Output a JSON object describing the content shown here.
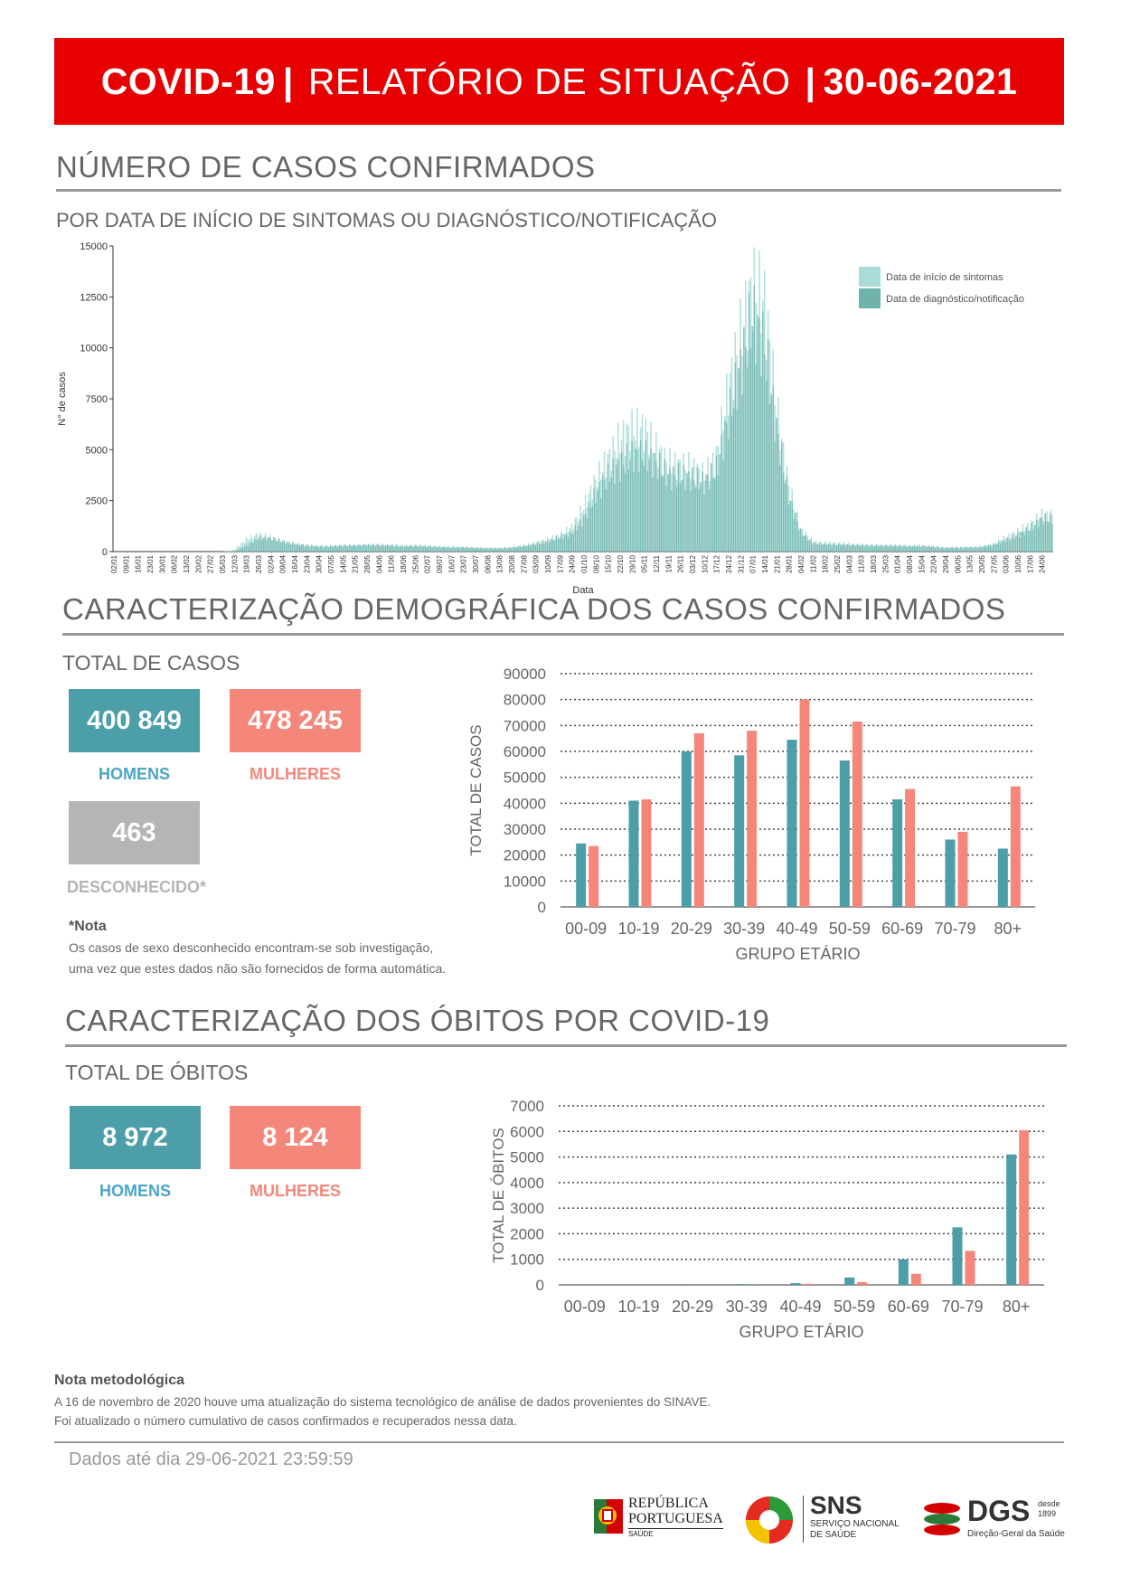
{
  "banner": {
    "left": "COVID-19",
    "sep1": "|",
    "middle": "RELATÓRIO DE SITUAÇÃO",
    "sep2": "|",
    "right": "30-06-2021"
  },
  "cases_section": {
    "title": "NÚMERO DE CASOS CONFIRMADOS",
    "subtitle": "POR DATA DE INÍCIO DE SINTOMAS OU DIAGNÓSTICO/NOTIFICAÇÃO"
  },
  "demo_section": {
    "title": "CARACTERIZAÇÃO DEMOGRÁFICA DOS CASOS CONFIRMADOS",
    "total_label": "TOTAL DE CASOS",
    "men_value": "400 849",
    "men_label": "HOMENS",
    "women_value": "478 245",
    "women_label": "MULHERES",
    "unknown_value": "463",
    "unknown_label": "DESCONHECIDO*",
    "note_title": "*Nota",
    "note_line1": "Os casos de sexo desconhecido encontram-se sob investigação,",
    "note_line2": "uma vez que estes dados não são fornecidos de forma automática."
  },
  "deaths_section": {
    "title": "CARACTERIZAÇÃO DOS ÓBITOS POR COVID-19",
    "total_label": "TOTAL DE ÓBITOS",
    "men_value": "8 972",
    "men_label": "HOMENS",
    "women_value": "8 124",
    "women_label": "MULHERES"
  },
  "method_note": {
    "title": "Nota metodológica",
    "line1": "A 16 de novembro de 2020 houve uma atualização do sistema tecnológico de análise de dados provenientes do SINAVE.",
    "line2": "Foi atualizado o número cumulativo de casos confirmados e recuperados nessa data."
  },
  "footer": {
    "data_until": "Dados até dia 29-06-2021 23:59:59"
  },
  "logos": {
    "rp_line1": "REPÚBLICA",
    "rp_line2": "PORTUGUESA",
    "rp_line3": "SAÚDE",
    "sns_title": "SNS",
    "sns_line1": "SERVIÇO NACIONAL",
    "sns_line2": "DE SAÚDE",
    "dgs_title": "DGS",
    "dgs_since1": "desde",
    "dgs_since2": "1899",
    "dgs_sub": "Direção-Geral da Saúde"
  },
  "colors": {
    "men": "#4c9ea8",
    "women": "#f5877a",
    "unknown": "#b5b5b5",
    "symptoms": "#a7ddd6",
    "diagnosis": "#6fb3ad",
    "banner": "#e60000"
  },
  "chart_data": [
    {
      "type": "bar",
      "xlabel": "Data",
      "ylabel": "N° de casos",
      "ylim": [
        0,
        15000
      ],
      "yticks": [
        "0",
        "2500",
        "5000",
        "7500",
        "10000",
        "12500",
        "15000"
      ],
      "x_tick_labels": [
        "02/01",
        "09/01",
        "16/01",
        "23/01",
        "30/01",
        "06/02",
        "13/02",
        "20/02",
        "27/02",
        "05/03",
        "12/03",
        "19/03",
        "26/03",
        "02/04",
        "09/04",
        "16/04",
        "23/04",
        "30/04",
        "07/05",
        "14/05",
        "21/05",
        "28/05",
        "04/06",
        "11/06",
        "18/06",
        "25/06",
        "02/07",
        "09/07",
        "16/07",
        "23/07",
        "30/07",
        "06/08",
        "13/08",
        "20/08",
        "27/08",
        "03/09",
        "10/09",
        "17/09",
        "24/09",
        "01/10",
        "08/10",
        "15/10",
        "22/10",
        "29/10",
        "05/11",
        "12/11",
        "19/11",
        "26/11",
        "03/12",
        "10/12",
        "17/12",
        "24/12",
        "31/12",
        "07/01",
        "14/01",
        "21/01",
        "28/01",
        "04/02",
        "11/02",
        "18/02",
        "25/02",
        "04/03",
        "11/03",
        "18/03",
        "25/03",
        "01/04",
        "08/04",
        "15/04",
        "22/04",
        "29/04",
        "06/05",
        "13/05",
        "20/05",
        "27/05",
        "03/06",
        "10/06",
        "17/06",
        "24/06"
      ],
      "legend": [
        "Data de início de sintomas",
        "Data de diagnóstico/notificação"
      ],
      "legend_position": "top-right",
      "series": [
        {
          "name": "Data de início de sintomas",
          "color": "#a7ddd6",
          "values": [
            0,
            0,
            0,
            0,
            0,
            0,
            0,
            0,
            0,
            0,
            80,
            600,
            850,
            700,
            500,
            380,
            300,
            280,
            280,
            300,
            300,
            330,
            340,
            330,
            280,
            300,
            280,
            250,
            230,
            230,
            200,
            190,
            180,
            220,
            300,
            450,
            600,
            800,
            1200,
            2200,
            3500,
            4500,
            5500,
            6000,
            6000,
            5000,
            4300,
            4200,
            4100,
            3700,
            4600,
            8000,
            10500,
            13000,
            12200,
            7000,
            3200,
            1100,
            500,
            420,
            400,
            380,
            340,
            320,
            300,
            320,
            280,
            300,
            250,
            200,
            220,
            230,
            250,
            380,
            700,
            1000,
            1300,
            1800
          ]
        },
        {
          "name": "Data de diagnóstico/notificação",
          "color": "#6fb3ad",
          "values": [
            0,
            0,
            0,
            0,
            0,
            0,
            0,
            0,
            0,
            0,
            0,
            300,
            650,
            650,
            500,
            380,
            300,
            250,
            250,
            300,
            300,
            330,
            310,
            300,
            250,
            280,
            250,
            220,
            200,
            200,
            180,
            160,
            160,
            190,
            250,
            350,
            500,
            700,
            900,
            1600,
            2800,
            3700,
            4200,
            4700,
            4700,
            4300,
            3700,
            3700,
            3600,
            3400,
            4000,
            6500,
            9000,
            11500,
            10000,
            6000,
            2700,
            950,
            400,
            350,
            350,
            320,
            300,
            290,
            280,
            280,
            260,
            270,
            230,
            180,
            190,
            200,
            220,
            330,
            550,
            800,
            1100,
            1600
          ]
        }
      ]
    },
    {
      "type": "bar",
      "xlabel": "GRUPO ETÁRIO",
      "ylabel": "TOTAL DE CASOS",
      "ylim": [
        0,
        90000
      ],
      "yticks": [
        "0",
        "10000",
        "20000",
        "30000",
        "40000",
        "50000",
        "60000",
        "70000",
        "80000",
        "90000"
      ],
      "categories": [
        "00-09",
        "10-19",
        "20-29",
        "30-39",
        "40-49",
        "50-59",
        "60-69",
        "70-79",
        "80+"
      ],
      "series": [
        {
          "name": "HOMENS",
          "color": "#4c9ea8",
          "values": [
            24500,
            41000,
            60000,
            58500,
            64500,
            56500,
            41500,
            26000,
            22500
          ]
        },
        {
          "name": "MULHERES",
          "color": "#f5877a",
          "values": [
            23500,
            41500,
            67000,
            68000,
            80000,
            71500,
            45500,
            29000,
            46500
          ]
        }
      ]
    },
    {
      "type": "bar",
      "xlabel": "GRUPO ETÁRIO",
      "ylabel": "TOTAL DE ÓBITOS",
      "ylim": [
        0,
        7000
      ],
      "yticks": [
        "0",
        "1000",
        "2000",
        "3000",
        "4000",
        "5000",
        "6000",
        "7000"
      ],
      "categories": [
        "00-09",
        "10-19",
        "20-29",
        "30-39",
        "40-49",
        "50-59",
        "60-69",
        "70-79",
        "80+"
      ],
      "series": [
        {
          "name": "HOMENS",
          "color": "#4c9ea8",
          "values": [
            2,
            3,
            8,
            20,
            70,
            290,
            1000,
            2250,
            5100
          ]
        },
        {
          "name": "MULHERES",
          "color": "#f5877a",
          "values": [
            1,
            2,
            4,
            10,
            40,
            110,
            430,
            1330,
            6050
          ]
        }
      ]
    }
  ]
}
